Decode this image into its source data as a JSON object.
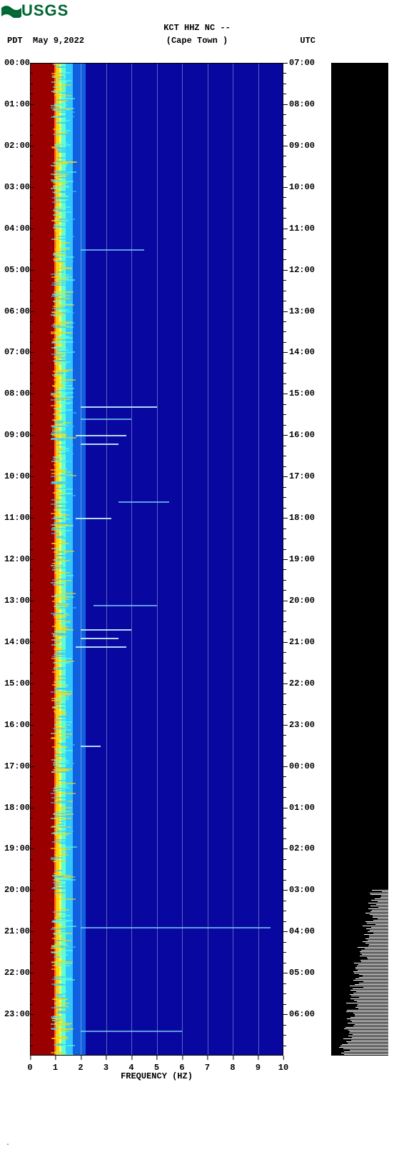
{
  "logo": {
    "text": "USGS",
    "color": "#006633"
  },
  "header": {
    "left_tz": "PDT",
    "date": "May 9,2022",
    "station_line1": "KCT HHZ NC --",
    "station_line2": "(Cape Town )",
    "right_tz": "UTC"
  },
  "spectrogram": {
    "type": "spectrogram",
    "background_color": "#0a0a90",
    "x_label": "FREQUENCY (HZ)",
    "x_ticks": [
      0,
      1,
      2,
      3,
      4,
      5,
      6,
      7,
      8,
      9,
      10
    ],
    "xlim": [
      0,
      10
    ],
    "gridline_color": "rgba(255,255,255,0.35)",
    "left_time_labels": [
      "00:00",
      "01:00",
      "02:00",
      "03:00",
      "04:00",
      "05:00",
      "06:00",
      "07:00",
      "08:00",
      "09:00",
      "10:00",
      "11:00",
      "12:00",
      "13:00",
      "14:00",
      "15:00",
      "16:00",
      "17:00",
      "18:00",
      "19:00",
      "20:00",
      "21:00",
      "22:00",
      "23:00"
    ],
    "right_time_labels": [
      "07:00",
      "08:00",
      "09:00",
      "10:00",
      "11:00",
      "12:00",
      "13:00",
      "14:00",
      "15:00",
      "16:00",
      "17:00",
      "18:00",
      "19:00",
      "20:00",
      "21:00",
      "22:00",
      "23:00",
      "00:00",
      "01:00",
      "02:00",
      "03:00",
      "04:00",
      "05:00",
      "06:00"
    ],
    "minor_ticks_per_hour": 3,
    "bands": [
      {
        "from_hz": 0.0,
        "to_hz": 0.95,
        "color": "#9a0000"
      },
      {
        "from_hz": 0.95,
        "to_hz": 1.05,
        "color": "#ff6a00"
      },
      {
        "from_hz": 1.05,
        "to_hz": 1.15,
        "color": "#ffd400"
      },
      {
        "from_hz": 1.15,
        "to_hz": 1.25,
        "color": "#e8ff60"
      },
      {
        "from_hz": 1.25,
        "to_hz": 1.4,
        "color": "#60ffcf"
      },
      {
        "from_hz": 1.4,
        "to_hz": 1.7,
        "color": "#30c8ff"
      },
      {
        "from_hz": 1.7,
        "to_hz": 2.2,
        "color": "#1060e0"
      },
      {
        "from_hz": 2.2,
        "to_hz": 10.0,
        "color": "#0808a0"
      }
    ],
    "streaks": [
      {
        "hour": 4.5,
        "from_hz": 2.0,
        "to_hz": 4.5,
        "bright": false
      },
      {
        "hour": 8.3,
        "from_hz": 2.0,
        "to_hz": 5.0,
        "bright": true
      },
      {
        "hour": 8.6,
        "from_hz": 2.0,
        "to_hz": 4.0,
        "bright": false
      },
      {
        "hour": 9.0,
        "from_hz": 1.8,
        "to_hz": 3.8,
        "bright": true
      },
      {
        "hour": 9.2,
        "from_hz": 2.0,
        "to_hz": 3.5,
        "bright": true
      },
      {
        "hour": 10.6,
        "from_hz": 3.5,
        "to_hz": 5.5,
        "bright": false
      },
      {
        "hour": 11.0,
        "from_hz": 1.8,
        "to_hz": 3.2,
        "bright": true
      },
      {
        "hour": 13.1,
        "from_hz": 2.5,
        "to_hz": 5.0,
        "bright": false
      },
      {
        "hour": 13.7,
        "from_hz": 2.0,
        "to_hz": 4.0,
        "bright": true
      },
      {
        "hour": 13.9,
        "from_hz": 2.0,
        "to_hz": 3.5,
        "bright": true
      },
      {
        "hour": 14.1,
        "from_hz": 1.8,
        "to_hz": 3.8,
        "bright": true
      },
      {
        "hour": 16.5,
        "from_hz": 2.0,
        "to_hz": 2.8,
        "bright": true
      },
      {
        "hour": 20.9,
        "from_hz": 2.0,
        "to_hz": 9.5,
        "bright": false
      },
      {
        "hour": 23.4,
        "from_hz": 2.0,
        "to_hz": 6.0,
        "bright": false
      }
    ]
  },
  "side_panel": {
    "background_color": "#000000",
    "noise_color": "#ffffff",
    "noise_region_from_hour": 20.0,
    "noise_region_to_hour": 24.0
  },
  "fonts": {
    "tick_fontsize": 12,
    "label_fontsize": 12,
    "header_fontsize": 12
  },
  "footer_mark": "."
}
